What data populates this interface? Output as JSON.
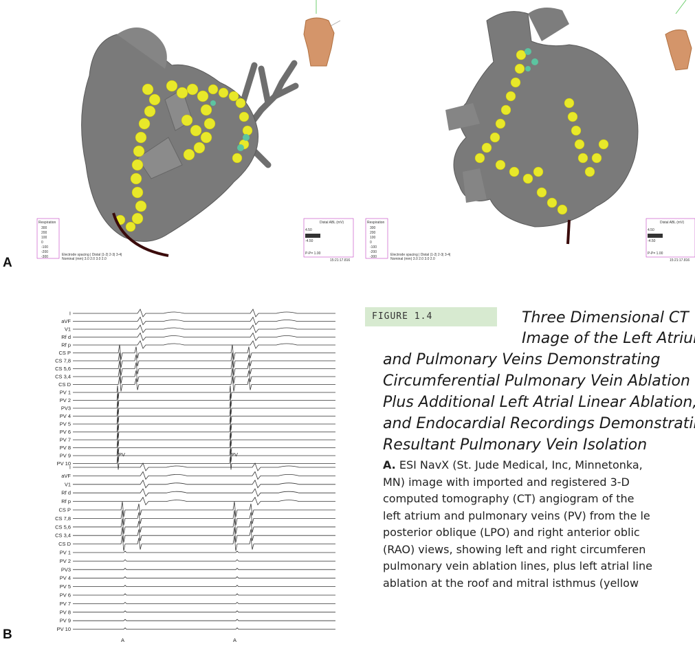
{
  "panel_labels": {
    "a": "A",
    "b": "B"
  },
  "figure_tag": "FIGURE 1.4",
  "caption_title_lines": [
    "Three Dimensional CT",
    "Image of the Left Atrium",
    "and Pulmonary Veins Demonstrating",
    "Circumferential Pulmonary Vein Ablation",
    "Plus Additional Left Atrial Linear Ablation,",
    "and Endocardial Recordings Demonstrating",
    "Resultant Pulmonary Vein Isolation"
  ],
  "caption_body": {
    "lead": "A.",
    "lines": [
      "ESI NavX (St. Jude Medical, Inc, Minnetonka,",
      "MN) image with imported and registered 3-D",
      "computed tomography (CT) angiogram of the",
      "left atrium and pulmonary veins (PV) from the le",
      "posterior oblique (LPO) and right anterior oblic",
      "(RAO) views, showing left and right circumferen",
      "pulmonary vein ablation lines, plus left atrial line",
      "ablation at the roof and mitral isthmus (yellow"
    ]
  },
  "ecg_top": {
    "leads": [
      "I",
      "aVF",
      "V1",
      "Rf d",
      "Rf p",
      "CS P",
      "CS 7,8",
      "CS 5,6",
      "CS 3,4",
      "CS D",
      "PV 1",
      "PV 2",
      "PV3",
      "PV 4",
      "PV 5",
      "PV 6",
      "PV 7",
      "PV 8",
      "PV 9",
      "PV 10"
    ],
    "beat_labels": [
      "PV",
      "PV"
    ]
  },
  "ecg_bottom": {
    "leads": [
      "I",
      "aVF",
      "V1",
      "Rf d",
      "Rf p",
      "CS P",
      "CS 7,8",
      "CS 5,6",
      "CS 3,4",
      "CS D",
      "PV 1",
      "PV 2",
      "PV3",
      "PV 4",
      "PV 5",
      "PV 6",
      "PV 7",
      "PV 8",
      "PV 9",
      "PV 10"
    ],
    "beat_labels": [
      "A",
      "A"
    ]
  },
  "navx_left": {
    "respiration_label": "Respiration",
    "resp_values": [
      "300",
      "200",
      "100",
      "0",
      "-100",
      "-200",
      "-300"
    ],
    "electrode_spacing": "Electrode spacing | Distal |1-2| 2-3| 3-4|",
    "nominal": "Nominal (mm)   3.0   2.0   3.0   2.0",
    "distal_label": "Distal ABL (mV)",
    "distal_values": [
      "4.50",
      "-4.50"
    ],
    "ppv": "P-P= 1.00",
    "time": "15:21:17.816"
  },
  "navx_right": {
    "respiration_label": "Respiration",
    "resp_values": [
      "300",
      "200",
      "100",
      "0",
      "-100",
      "-200",
      "-300"
    ],
    "electrode_spacing": "Electrode spacing | Distal |1-2| 2-3| 3-4|",
    "nominal": "Nominal (mm)   3.0   2.0   3.0   2.0",
    "distal_label": "Distal ABL (mV)",
    "distal_values": [
      "4.50",
      "-4.50"
    ],
    "ppv": "P-P= 1.00",
    "time": "15:21:17.816"
  },
  "colors": {
    "ablation": "#e8e82a",
    "ablation_teal": "#5cc4a0",
    "tissue": "#7a7a7a",
    "torso": "#d4956a",
    "figtag_bg": "#d7ead0"
  }
}
